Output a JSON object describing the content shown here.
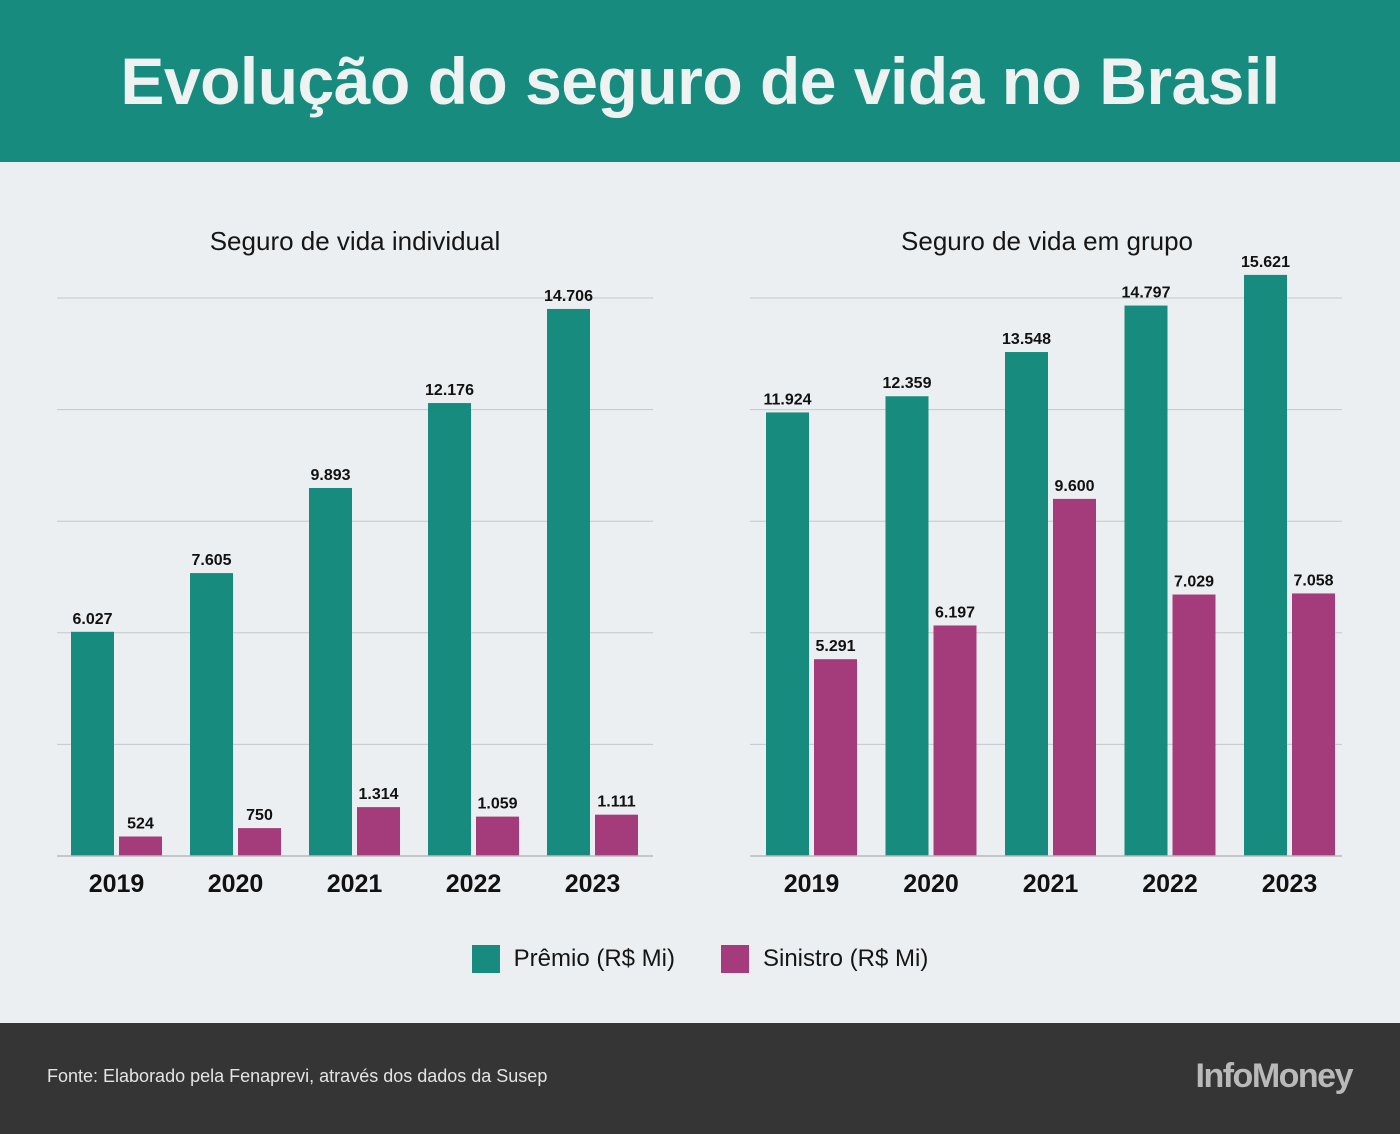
{
  "header": {
    "title": "Evolução do seguro de vida no Brasil"
  },
  "colors": {
    "premio": "#178b7e",
    "sinistro": "#a43c7c"
  },
  "chart_data": [
    {
      "type": "bar",
      "title": "Seguro de vida individual",
      "categories": [
        "2019",
        "2020",
        "2021",
        "2022",
        "2023"
      ],
      "series": [
        {
          "name": "Prêmio (R$ Mi)",
          "values": [
            6027,
            7605,
            9893,
            12176,
            14706
          ],
          "labels": [
            "6.027",
            "7.605",
            "9.893",
            "12.176",
            "14.706"
          ]
        },
        {
          "name": "Sinistro (R$ Mi)",
          "values": [
            524,
            750,
            1314,
            1059,
            1111
          ],
          "labels": [
            "524",
            "750",
            "1.314",
            "1.059",
            "1.111"
          ]
        }
      ],
      "ylim": [
        0,
        15000
      ],
      "grid": true
    },
    {
      "type": "bar",
      "title": "Seguro de vida em grupo",
      "categories": [
        "2019",
        "2020",
        "2021",
        "2022",
        "2023"
      ],
      "series": [
        {
          "name": "Prêmio (R$ Mi)",
          "values": [
            11924,
            12359,
            13548,
            14797,
            15621
          ],
          "labels": [
            "11.924",
            "12.359",
            "13.548",
            "14.797",
            "15.621"
          ]
        },
        {
          "name": "Sinistro (R$ Mi)",
          "values": [
            5291,
            6197,
            9600,
            7029,
            7058
          ],
          "labels": [
            "5.291",
            "6.197",
            "9.600",
            "7.029",
            "7.058"
          ]
        }
      ],
      "ylim": [
        0,
        15000
      ],
      "grid": true
    }
  ],
  "legend": {
    "premio_label": "Prêmio (R$ Mi)",
    "sinistro_label": "Sinistro (R$ Mi)"
  },
  "footer": {
    "source": "Fonte: Elaborado pela Fenaprevi, através dos dados da Susep",
    "brand": "InfoMoney"
  }
}
